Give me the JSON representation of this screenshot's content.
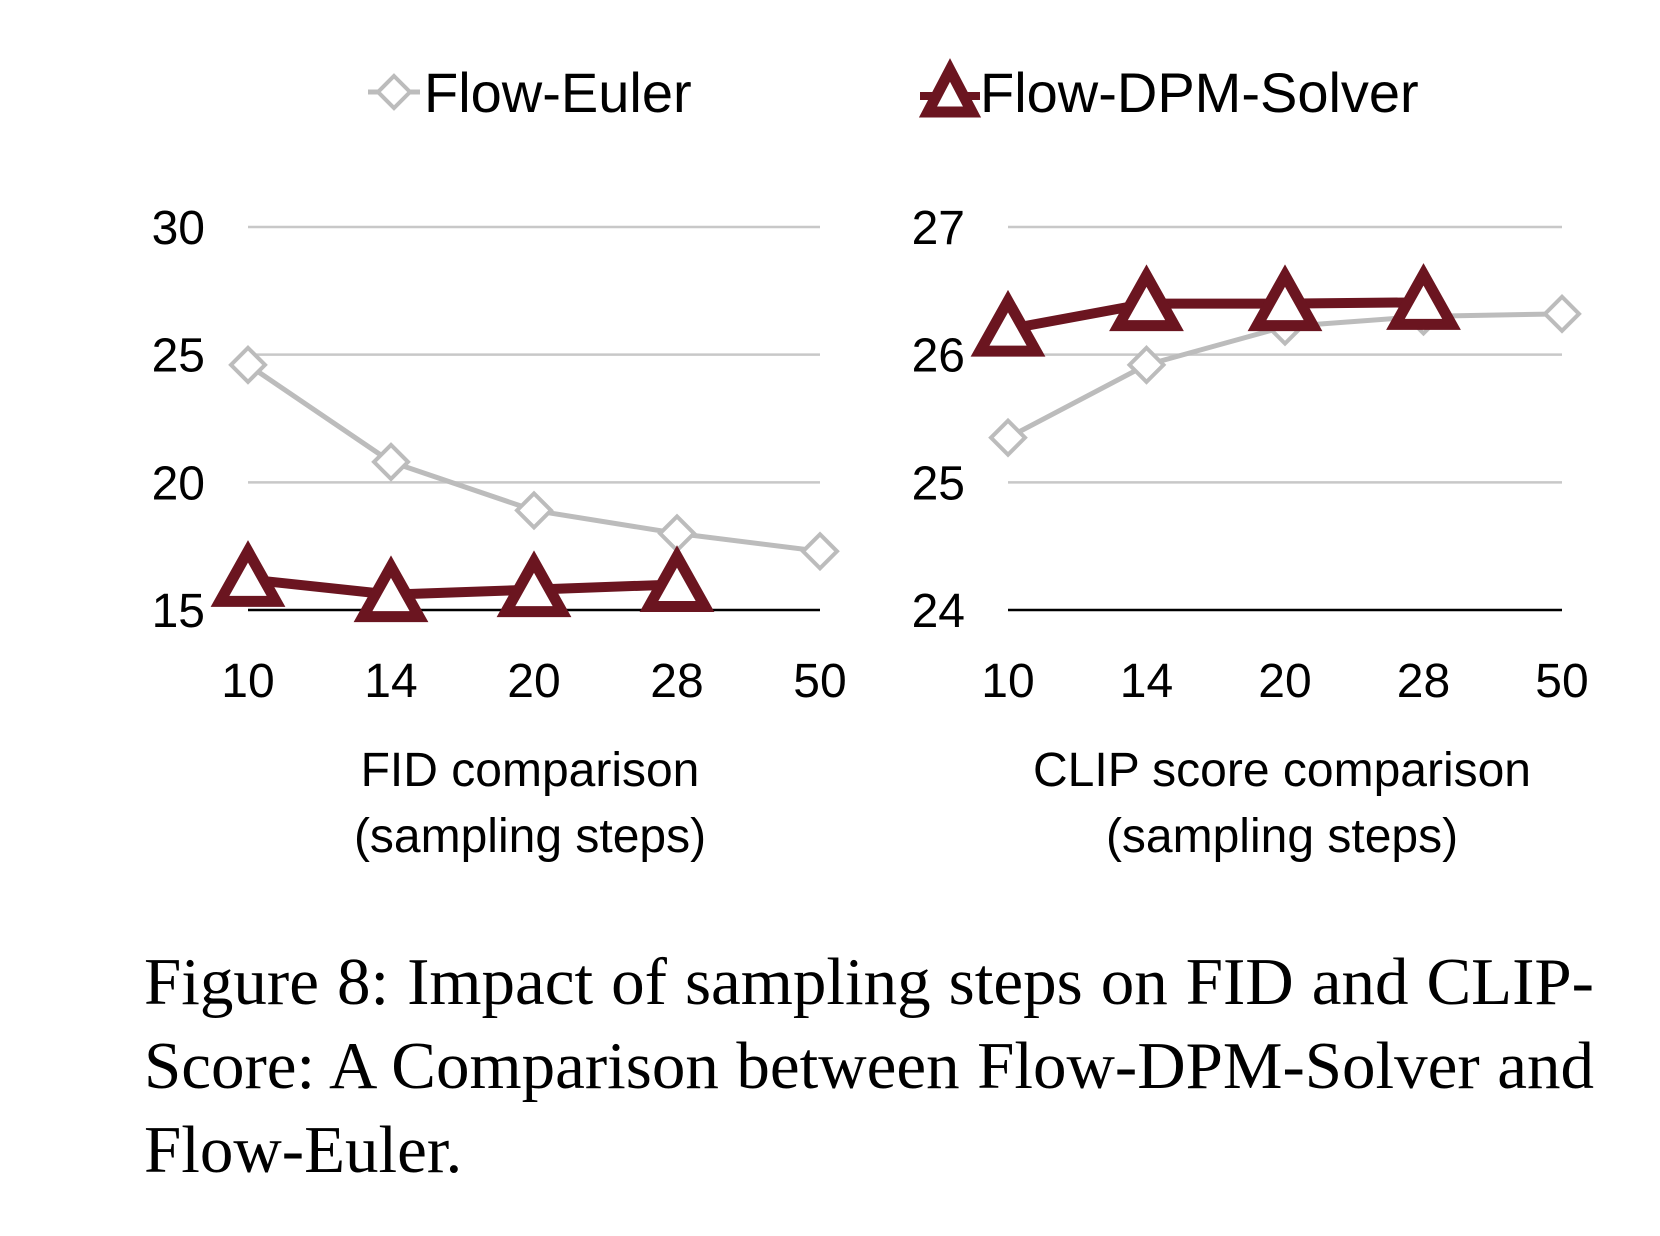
{
  "legend": {
    "items": [
      {
        "label": "Flow-Euler",
        "color": "#bcbcbc",
        "marker": "diamond-open"
      },
      {
        "label": "Flow-DPM-Solver",
        "color": "#6b1520",
        "marker": "triangle-open"
      }
    ]
  },
  "chart_data": [
    {
      "type": "line",
      "title": "",
      "xlabel": "FID comparison\n(sampling steps)",
      "xlabel_lines": [
        "FID comparison",
        "(sampling steps)"
      ],
      "ylabel": "",
      "categories": [
        "10",
        "14",
        "20",
        "28",
        "50"
      ],
      "yticks": [
        "30",
        "25",
        "20",
        "15"
      ],
      "ylim": [
        15,
        30
      ],
      "grid": true,
      "series": [
        {
          "name": "Flow-Euler",
          "values": [
            24.6,
            20.8,
            18.9,
            18.0,
            17.3
          ],
          "color": "#bcbcbc"
        },
        {
          "name": "Flow-DPM-Solver",
          "values": [
            16.2,
            15.6,
            15.8,
            16.0,
            null
          ],
          "color": "#6b1520"
        }
      ]
    },
    {
      "type": "line",
      "title": "",
      "xlabel": "CLIP score comparison\n(sampling steps)",
      "xlabel_lines": [
        "CLIP score comparison",
        "(sampling steps)"
      ],
      "ylabel": "",
      "categories": [
        "10",
        "14",
        "20",
        "28",
        "50"
      ],
      "yticks": [
        "27",
        "26",
        "25",
        "24"
      ],
      "ylim": [
        24,
        27
      ],
      "grid": true,
      "series": [
        {
          "name": "Flow-Euler",
          "values": [
            25.35,
            25.92,
            26.22,
            26.3,
            26.32
          ],
          "color": "#bcbcbc"
        },
        {
          "name": "Flow-DPM-Solver",
          "values": [
            26.2,
            26.4,
            26.4,
            26.41,
            null
          ],
          "color": "#6b1520"
        }
      ]
    }
  ],
  "caption": "Figure 8: Impact of sampling steps on FID and CLIP-Score: A Comparison between Flow-DPM-Solver and Flow-Euler."
}
